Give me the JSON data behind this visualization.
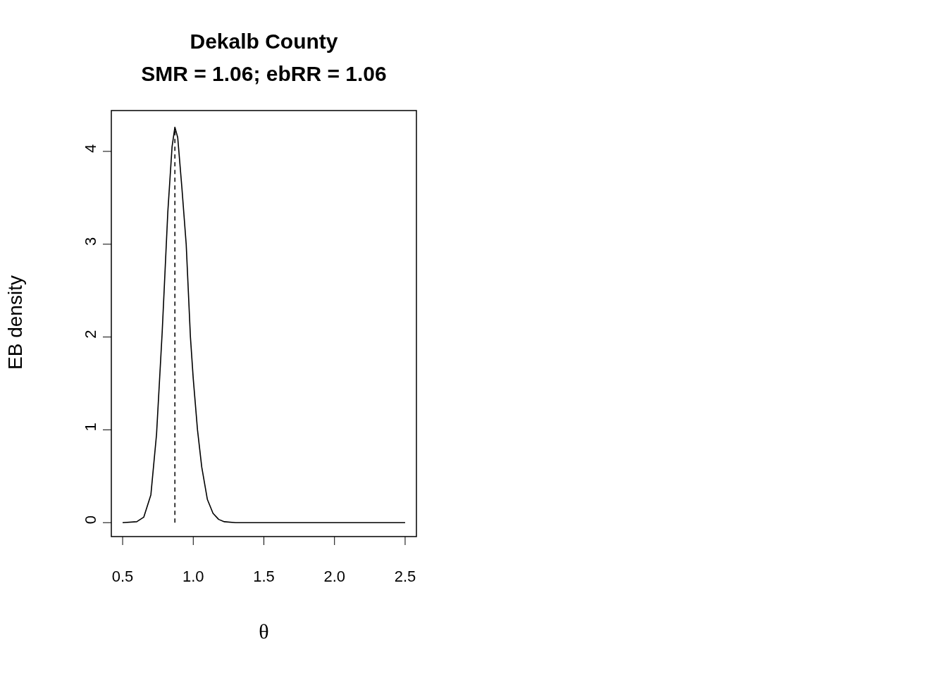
{
  "chart_data": {
    "type": "line",
    "title": "Dekalb County\nSMR = 1.06; ebRR = 1.06",
    "xlabel": "θ",
    "ylabel": "EB density",
    "x": [
      0.5,
      0.6,
      0.65,
      0.7,
      0.74,
      0.78,
      0.8,
      0.82,
      0.85,
      0.87,
      0.89,
      0.92,
      0.95,
      0.98,
      1.0,
      1.03,
      1.06,
      1.1,
      1.14,
      1.18,
      1.22,
      1.3,
      1.5,
      2.0,
      2.5
    ],
    "series": [
      {
        "color": "#000000",
        "values": [
          0,
          0.01,
          0.06,
          0.3,
          0.95,
          2.05,
          2.7,
          3.35,
          4.05,
          4.26,
          4.15,
          3.6,
          3.0,
          2.0,
          1.55,
          1.0,
          0.6,
          0.25,
          0.1,
          0.035,
          0.01,
          0,
          0,
          0,
          0
        ]
      }
    ],
    "ref_lines": [
      {
        "axis": "x",
        "value": 0.87,
        "color": "#000000",
        "line_style": "dashed"
      }
    ],
    "xlim": [
      0.42,
      2.58
    ],
    "ylim": [
      -0.15,
      4.44
    ],
    "xticks": [
      {
        "value": 0.5,
        "label": "0.5"
      },
      {
        "value": 1,
        "label": "1.0"
      },
      {
        "value": 1.5,
        "label": "1.5"
      },
      {
        "value": 2,
        "label": "2.0"
      },
      {
        "value": 2.5,
        "label": "2.5"
      }
    ],
    "yticks": [
      0,
      1,
      2,
      3,
      4
    ],
    "grid": false,
    "legend": false,
    "marker": "none",
    "line_style": "solid"
  }
}
